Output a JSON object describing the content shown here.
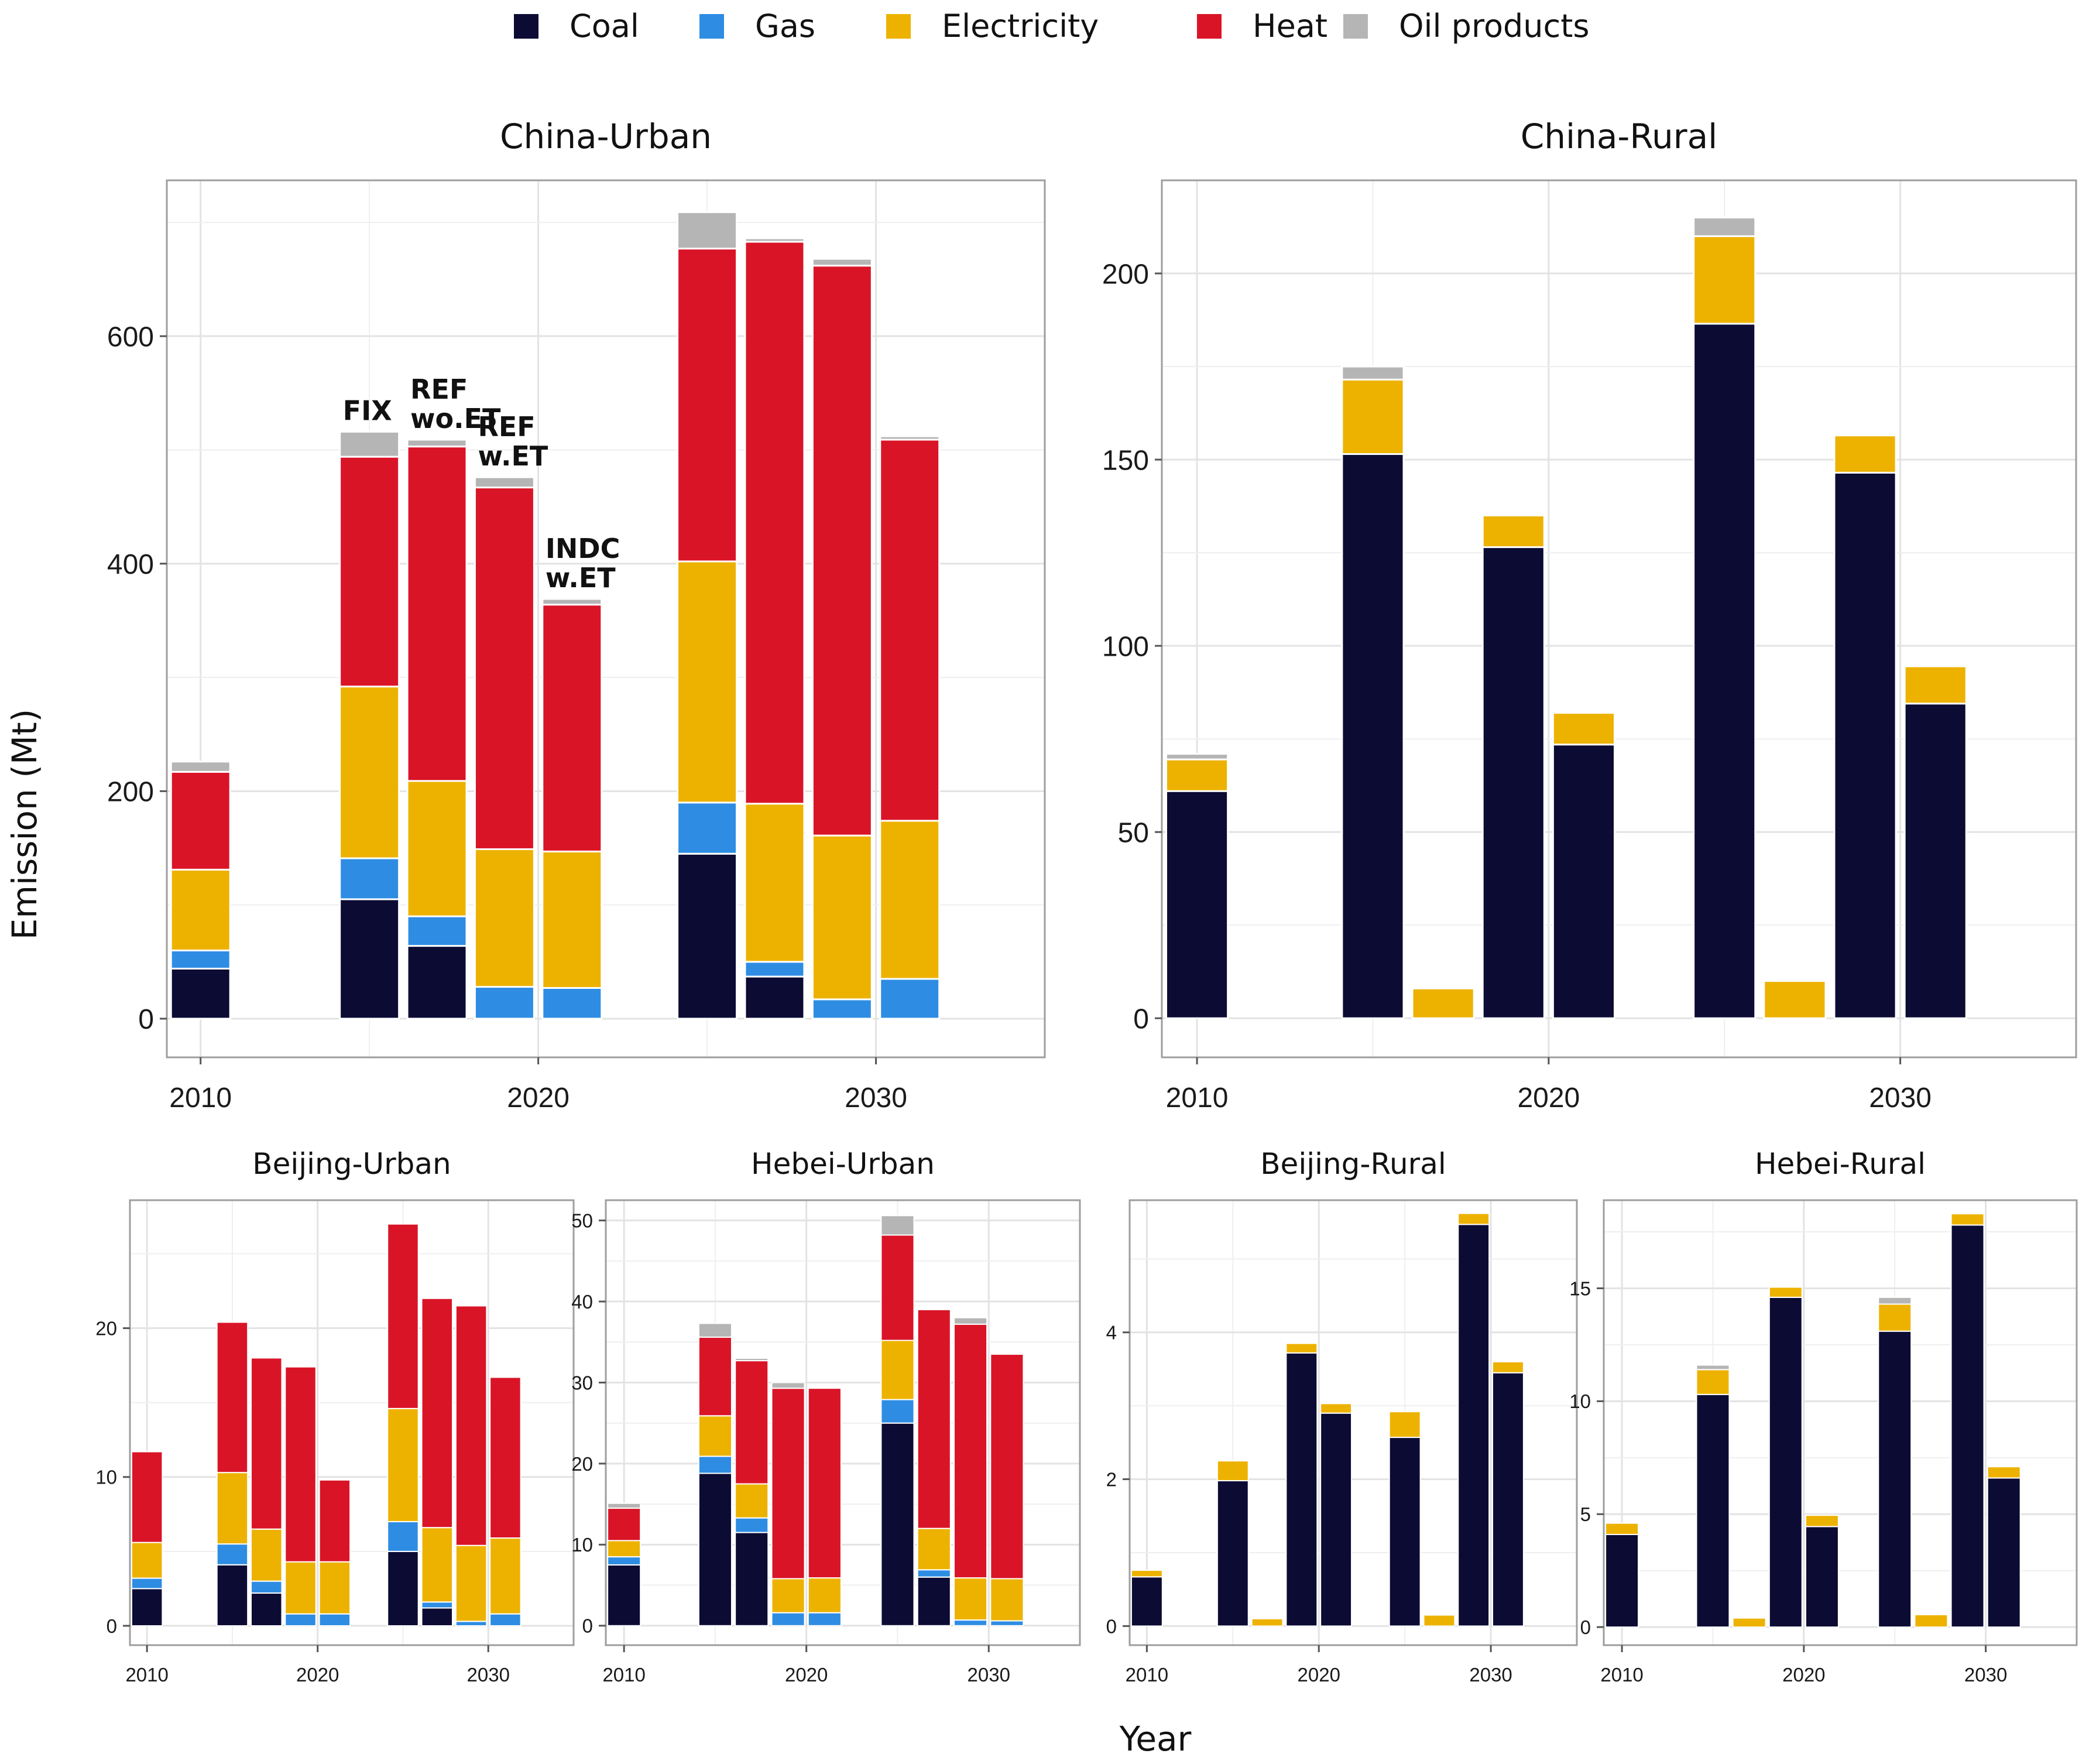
{
  "legend": [
    {
      "key": "coal",
      "label": "Coal",
      "color": "#0b0b34"
    },
    {
      "key": "gas",
      "label": "Gas",
      "color": "#2e8de3"
    },
    {
      "key": "electricity",
      "label": "Electricity",
      "color": "#edb200"
    },
    {
      "key": "heat",
      "label": "Heat",
      "color": "#da1427"
    },
    {
      "key": "oil",
      "label": "Oil products",
      "color": "#b5b5b5"
    }
  ],
  "axis_labels": {
    "x": "Year",
    "y": "Emission (Mt)"
  },
  "chart_data": [
    {
      "id": "china-urban",
      "type": "bar",
      "stacked": true,
      "title": "China-Urban",
      "ylim": [
        -34,
        737
      ],
      "yticks": [
        0,
        200,
        400,
        600
      ],
      "xlim": [
        2009,
        2035
      ],
      "xticks": [
        2010,
        2020,
        2030
      ],
      "bars": [
        {
          "x": 2010,
          "coal": 44,
          "gas": 16,
          "electricity": 71,
          "heat": 86,
          "oil": 9
        },
        {
          "x": 2015,
          "coal": 105,
          "gas": 36,
          "electricity": 151,
          "heat": 202,
          "oil": 22,
          "label": "FIX"
        },
        {
          "x": 2017,
          "coal": 64,
          "gas": 26,
          "electricity": 119,
          "heat": 294,
          "oil": 6,
          "label": "REF wo.ET"
        },
        {
          "x": 2019,
          "coal": 0,
          "gas": 28,
          "electricity": 121,
          "heat": 318,
          "oil": 9,
          "label": "REF w.ET"
        },
        {
          "x": 2021,
          "coal": 0,
          "gas": 27,
          "electricity": 120,
          "heat": 217,
          "oil": 5,
          "label": "INDC w.ET"
        },
        {
          "x": 2025,
          "coal": 145,
          "gas": 45,
          "electricity": 212,
          "heat": 275,
          "oil": 32
        },
        {
          "x": 2027,
          "coal": 37,
          "gas": 13,
          "electricity": 139,
          "heat": 494,
          "oil": 3
        },
        {
          "x": 2029,
          "coal": 0,
          "gas": 17,
          "electricity": 144,
          "heat": 501,
          "oil": 6
        },
        {
          "x": 2031,
          "coal": 0,
          "gas": 35,
          "electricity": 139,
          "heat": 335,
          "oil": 3
        }
      ]
    },
    {
      "id": "china-rural",
      "type": "bar",
      "stacked": true,
      "title": "China-Rural",
      "ylim": [
        -10.5,
        225
      ],
      "yticks": [
        0,
        50,
        100,
        150,
        200
      ],
      "xlim": [
        2009,
        2035
      ],
      "xticks": [
        2010,
        2020,
        2030
      ],
      "bars": [
        {
          "x": 2010,
          "coal": 61,
          "electricity": 8.5,
          "oil": 1.5
        },
        {
          "x": 2015,
          "coal": 151.5,
          "electricity": 20,
          "oil": 3.5
        },
        {
          "x": 2017,
          "coal": 0,
          "electricity": 8,
          "oil": 0
        },
        {
          "x": 2019,
          "coal": 126.5,
          "electricity": 8.5,
          "oil": 0
        },
        {
          "x": 2021,
          "coal": 73.5,
          "electricity": 8.5,
          "oil": 0
        },
        {
          "x": 2025,
          "coal": 186.5,
          "electricity": 23.5,
          "oil": 5
        },
        {
          "x": 2027,
          "coal": 0,
          "electricity": 10,
          "oil": 0
        },
        {
          "x": 2029,
          "coal": 146.5,
          "electricity": 10,
          "oil": 0
        },
        {
          "x": 2031,
          "coal": 84.5,
          "electricity": 10,
          "oil": 0
        }
      ]
    },
    {
      "id": "beijing-urban",
      "type": "bar",
      "stacked": true,
      "title": "Beijing-Urban",
      "ylim": [
        -1.3,
        28.6
      ],
      "yticks": [
        0,
        10,
        20
      ],
      "xlim": [
        2009,
        2035
      ],
      "xticks": [
        2010,
        2020,
        2030
      ],
      "bars": [
        {
          "x": 2010,
          "coal": 2.5,
          "gas": 0.7,
          "electricity": 2.4,
          "heat": 6.1
        },
        {
          "x": 2015,
          "coal": 4.1,
          "gas": 1.4,
          "electricity": 4.8,
          "heat": 10.1
        },
        {
          "x": 2017,
          "coal": 2.2,
          "gas": 0.8,
          "electricity": 3.5,
          "heat": 11.5
        },
        {
          "x": 2019,
          "coal": 0,
          "gas": 0.8,
          "electricity": 3.5,
          "heat": 13.1
        },
        {
          "x": 2021,
          "coal": 0,
          "gas": 0.8,
          "electricity": 3.5,
          "heat": 5.5
        },
        {
          "x": 2025,
          "coal": 5,
          "gas": 2,
          "electricity": 7.6,
          "heat": 12.4
        },
        {
          "x": 2027,
          "coal": 1.2,
          "gas": 0.4,
          "electricity": 5.0,
          "heat": 15.4
        },
        {
          "x": 2029,
          "coal": 0,
          "gas": 0.3,
          "electricity": 5.1,
          "heat": 16.1
        },
        {
          "x": 2031,
          "coal": 0,
          "gas": 0.8,
          "electricity": 5.1,
          "heat": 10.8
        }
      ]
    },
    {
      "id": "hebei-urban",
      "type": "bar",
      "stacked": true,
      "title": "Hebei-Urban",
      "ylim": [
        -2.4,
        52.5
      ],
      "yticks": [
        0,
        10,
        20,
        30,
        40,
        50
      ],
      "xlim": [
        2009,
        2035
      ],
      "xticks": [
        2010,
        2020,
        2030
      ],
      "bars": [
        {
          "x": 2010,
          "coal": 7.5,
          "gas": 1,
          "electricity": 2,
          "heat": 4,
          "oil": 0.6
        },
        {
          "x": 2015,
          "coal": 18.8,
          "gas": 2.1,
          "electricity": 5,
          "heat": 9.7,
          "oil": 1.7
        },
        {
          "x": 2017,
          "coal": 11.5,
          "gas": 1.8,
          "electricity": 4.2,
          "heat": 15.2,
          "oil": 0.3
        },
        {
          "x": 2019,
          "coal": 0,
          "gas": 1.6,
          "electricity": 4.2,
          "heat": 23.5,
          "oil": 0.7
        },
        {
          "x": 2021,
          "coal": 0,
          "gas": 1.6,
          "electricity": 4.3,
          "heat": 23.4
        },
        {
          "x": 2025,
          "coal": 25,
          "gas": 2.9,
          "electricity": 7.3,
          "heat": 13,
          "oil": 2.4
        },
        {
          "x": 2027,
          "coal": 6,
          "gas": 0.9,
          "electricity": 5.1,
          "heat": 27
        },
        {
          "x": 2029,
          "coal": 0,
          "gas": 0.7,
          "electricity": 5.2,
          "heat": 31.3,
          "oil": 0.8
        },
        {
          "x": 2031,
          "coal": 0,
          "gas": 0.6,
          "electricity": 5.2,
          "heat": 27.7
        }
      ]
    },
    {
      "id": "beijing-rural",
      "type": "bar",
      "stacked": true,
      "title": "Beijing-Rural",
      "ylim": [
        -0.26,
        5.8
      ],
      "yticks": [
        0,
        2,
        4
      ],
      "xlim": [
        2009,
        2035
      ],
      "xticks": [
        2010,
        2020,
        2030
      ],
      "bars": [
        {
          "x": 2010,
          "coal": 0.67,
          "electricity": 0.09
        },
        {
          "x": 2015,
          "coal": 1.98,
          "electricity": 0.27
        },
        {
          "x": 2017,
          "coal": 0,
          "electricity": 0.1
        },
        {
          "x": 2019,
          "coal": 3.72,
          "electricity": 0.13
        },
        {
          "x": 2021,
          "coal": 2.9,
          "electricity": 0.13
        },
        {
          "x": 2025,
          "coal": 2.57,
          "electricity": 0.35
        },
        {
          "x": 2027,
          "coal": 0,
          "electricity": 0.15
        },
        {
          "x": 2029,
          "coal": 5.47,
          "electricity": 0.15
        },
        {
          "x": 2031,
          "coal": 3.45,
          "electricity": 0.15
        }
      ]
    },
    {
      "id": "hebei-rural",
      "type": "bar",
      "stacked": true,
      "title": "Hebei-Rural",
      "ylim": [
        -0.8,
        18.9
      ],
      "yticks": [
        0,
        5,
        10,
        15
      ],
      "xlim": [
        2009,
        2035
      ],
      "xticks": [
        2010,
        2020,
        2030
      ],
      "bars": [
        {
          "x": 2010,
          "coal": 4.1,
          "electricity": 0.5
        },
        {
          "x": 2015,
          "coal": 10.3,
          "electricity": 1.1,
          "oil": 0.2
        },
        {
          "x": 2017,
          "coal": 0,
          "electricity": 0.4
        },
        {
          "x": 2019,
          "coal": 14.6,
          "electricity": 0.45
        },
        {
          "x": 2021,
          "coal": 4.45,
          "electricity": 0.5
        },
        {
          "x": 2025,
          "coal": 13.1,
          "electricity": 1.2,
          "oil": 0.3
        },
        {
          "x": 2027,
          "coal": 0,
          "electricity": 0.55
        },
        {
          "x": 2029,
          "coal": 17.8,
          "electricity": 0.5
        },
        {
          "x": 2031,
          "coal": 6.6,
          "electricity": 0.5
        }
      ]
    }
  ]
}
